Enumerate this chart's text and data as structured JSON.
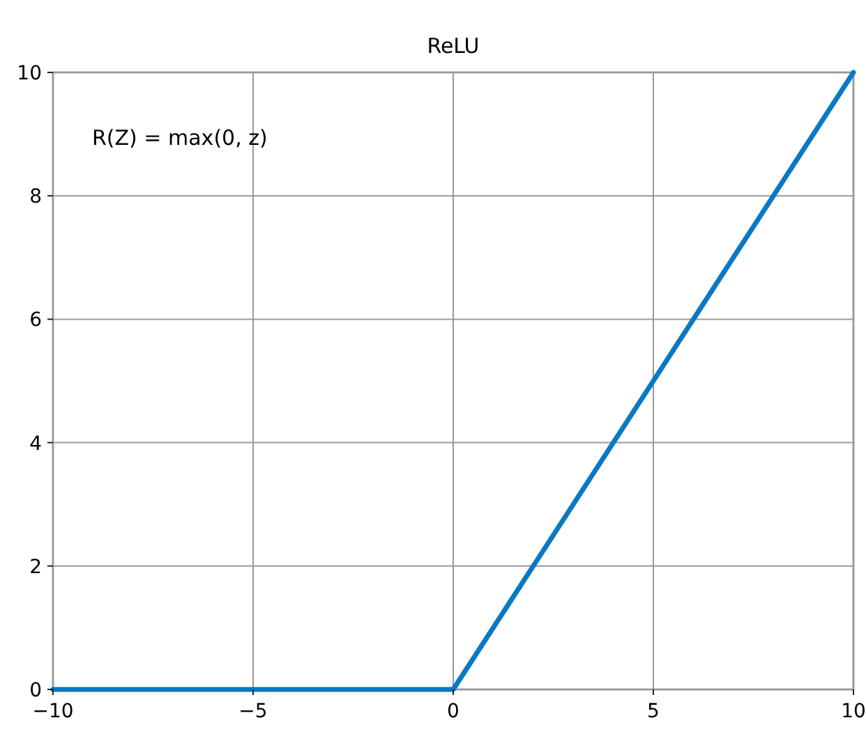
{
  "chart_data": {
    "type": "line",
    "title": "ReLU",
    "annotations": [
      "R(Z) = max(0, z)"
    ],
    "x": [
      -10,
      0,
      10
    ],
    "series": [
      {
        "color": "#0a78c2",
        "values": [
          0,
          0,
          10
        ]
      }
    ],
    "xlim": [
      -10,
      10
    ],
    "xticks": [
      {
        "value": -10,
        "label": "−10"
      },
      {
        "value": -5,
        "label": "−5"
      },
      0,
      5,
      10
    ],
    "ylim": [
      0,
      10
    ],
    "yticks": [
      0,
      2,
      4,
      6,
      8,
      10
    ],
    "grid": true,
    "line_style": "solid",
    "marker": "none"
  }
}
